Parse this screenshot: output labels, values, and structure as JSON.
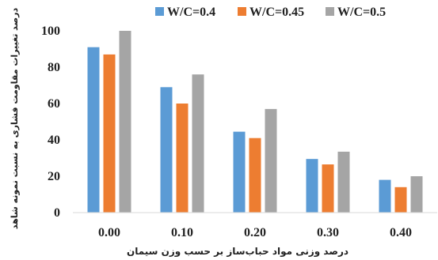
{
  "chart_data": {
    "type": "bar",
    "title": "",
    "xlabel": "درصد وزنی مواد حباب‌ساز بر حسب وزن سیمان",
    "ylabel": "درصد تغییرات مقاومت فشاری به نسبت نمونه شاهد",
    "categories": [
      "0.00",
      "0.10",
      "0.20",
      "0.30",
      "0.40"
    ],
    "series": [
      {
        "name": "W/C=0.4",
        "color": "#5B9BD5",
        "values": [
          91,
          69,
          44.5,
          29.5,
          18
        ]
      },
      {
        "name": "W/C=0.45",
        "color": "#ED7D31",
        "values": [
          87,
          60,
          41,
          26.5,
          14
        ]
      },
      {
        "name": "W/C=0.5",
        "color": "#A5A5A5",
        "values": [
          100,
          76,
          57,
          33.5,
          20
        ]
      }
    ],
    "ylim": [
      0,
      100
    ],
    "yticks": [
      0,
      20,
      40,
      60,
      80,
      100
    ],
    "grid": false,
    "legend_position": "top"
  }
}
